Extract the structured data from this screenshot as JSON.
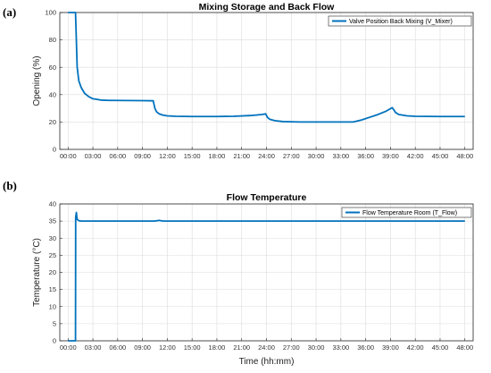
{
  "figure": {
    "panel_a_label": "(a)",
    "panel_b_label": "(b)",
    "line_color": "#0072BD",
    "grid_color": "#dcdcdc"
  },
  "chart_data": [
    {
      "type": "line",
      "title": "Mixing Storage and Back Flow",
      "xlabel": "",
      "ylabel": "Opening (%)",
      "x_unit": "hours",
      "xlim": [
        -1,
        49
      ],
      "ylim": [
        0,
        100
      ],
      "xticks": [
        0,
        3,
        6,
        9,
        12,
        15,
        18,
        21,
        24,
        27,
        30,
        33,
        36,
        39,
        42,
        45,
        48
      ],
      "xtick_labels": [
        "00:00",
        "03:00",
        "06:00",
        "09:00",
        "12:00",
        "15:00",
        "18:00",
        "21:00",
        "24:00",
        "27:00",
        "30:00",
        "33:00",
        "36:00",
        "39:00",
        "42:00",
        "45:00",
        "48:00"
      ],
      "yticks": [
        0,
        20,
        40,
        60,
        80,
        100
      ],
      "grid": true,
      "legend_position": "top-right",
      "series": [
        {
          "name": "Valve Position Back Mixing (V_Mixer)",
          "x": [
            0,
            0.9,
            1.0,
            1.1,
            1.3,
            1.6,
            2.0,
            2.5,
            3.0,
            4.0,
            5.0,
            7.0,
            9.0,
            10.3,
            10.5,
            10.7,
            11.0,
            11.5,
            12.0,
            13.0,
            15.0,
            18.0,
            20.0,
            22.0,
            23.5,
            23.9,
            24.1,
            24.4,
            25.0,
            26.0,
            28.0,
            30.0,
            33.0,
            34.5,
            35.5,
            36.5,
            37.5,
            38.5,
            39.2,
            39.4,
            39.6,
            40.0,
            41.0,
            42.0,
            45.0,
            48.0
          ],
          "y": [
            100,
            100,
            80,
            60,
            50,
            45,
            41,
            38.5,
            37,
            36,
            35.8,
            35.7,
            35.6,
            35.5,
            30,
            27.5,
            26,
            25,
            24.5,
            24.2,
            24,
            24,
            24.2,
            24.7,
            25.5,
            26,
            23.5,
            22,
            21,
            20.3,
            20,
            20,
            20,
            20,
            21.5,
            23.5,
            25.5,
            28,
            30.5,
            29,
            27,
            25.5,
            24.5,
            24.2,
            24,
            24
          ]
        }
      ]
    },
    {
      "type": "line",
      "title": "Flow Temperature",
      "xlabel": "Time (hh:mm)",
      "ylabel": "Temperature (°C)",
      "x_unit": "hours",
      "xlim": [
        -1,
        49
      ],
      "ylim": [
        0,
        40
      ],
      "xticks": [
        0,
        3,
        6,
        9,
        12,
        15,
        18,
        21,
        24,
        27,
        30,
        33,
        36,
        39,
        42,
        45,
        48
      ],
      "xtick_labels": [
        "00:00",
        "03:00",
        "06:00",
        "09:00",
        "12:00",
        "15:00",
        "18:00",
        "21:00",
        "24:00",
        "27:00",
        "30:00",
        "33:00",
        "36:00",
        "39:00",
        "42:00",
        "45:00",
        "48:00"
      ],
      "yticks": [
        0,
        5,
        10,
        15,
        20,
        25,
        30,
        35,
        40
      ],
      "grid": true,
      "legend_position": "top-right",
      "series": [
        {
          "name": "Flow Temperature Room (T_Flow)",
          "x": [
            0,
            0.9,
            0.92,
            1.0,
            1.1,
            1.3,
            1.6,
            2.0,
            5.0,
            10.5,
            11.0,
            11.5,
            20.0,
            30.0,
            40.0,
            48.0
          ],
          "y": [
            0,
            0,
            36,
            37.5,
            35.5,
            35.1,
            35,
            35,
            35,
            35,
            35.2,
            35,
            35,
            35,
            35,
            35
          ]
        }
      ]
    }
  ]
}
